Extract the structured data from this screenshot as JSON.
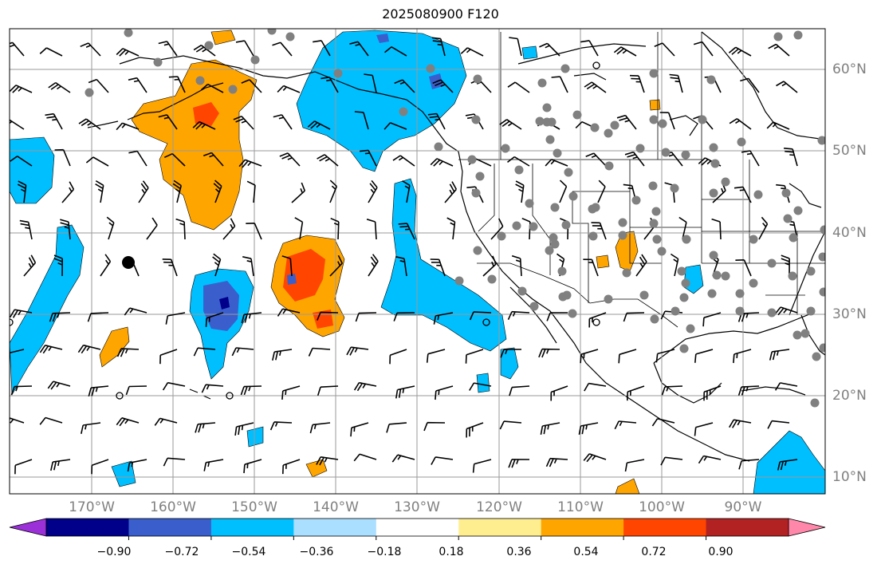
{
  "title": "2025080900 F120",
  "map": {
    "lon_range": [
      -180,
      -80
    ],
    "lat_range": [
      8,
      65
    ],
    "lon_labels": [
      "170°W",
      "160°W",
      "150°W",
      "140°W",
      "130°W",
      "120°W",
      "110°W",
      "100°W",
      "90°W"
    ],
    "lat_labels": [
      "60°N",
      "50°N",
      "40°N",
      "30°N",
      "20°N",
      "10°N"
    ],
    "grid": true,
    "station_marker_color": "#808080",
    "barb_color": "#000000"
  },
  "colorbar": {
    "orientation": "horizontal",
    "extend": "both",
    "tick_labels": [
      "−0.90",
      "−0.72",
      "−0.54",
      "−0.36",
      "−0.18",
      "0.18",
      "0.36",
      "0.54",
      "0.72",
      "0.90"
    ],
    "colors": [
      "#9b30d9",
      "#00008b",
      "#3a5fcd",
      "#00bfff",
      "#aadfff",
      "#ffffff",
      "#ffee90",
      "#ffa500",
      "#ff4500",
      "#b22222",
      "#ff88aa"
    ]
  }
}
